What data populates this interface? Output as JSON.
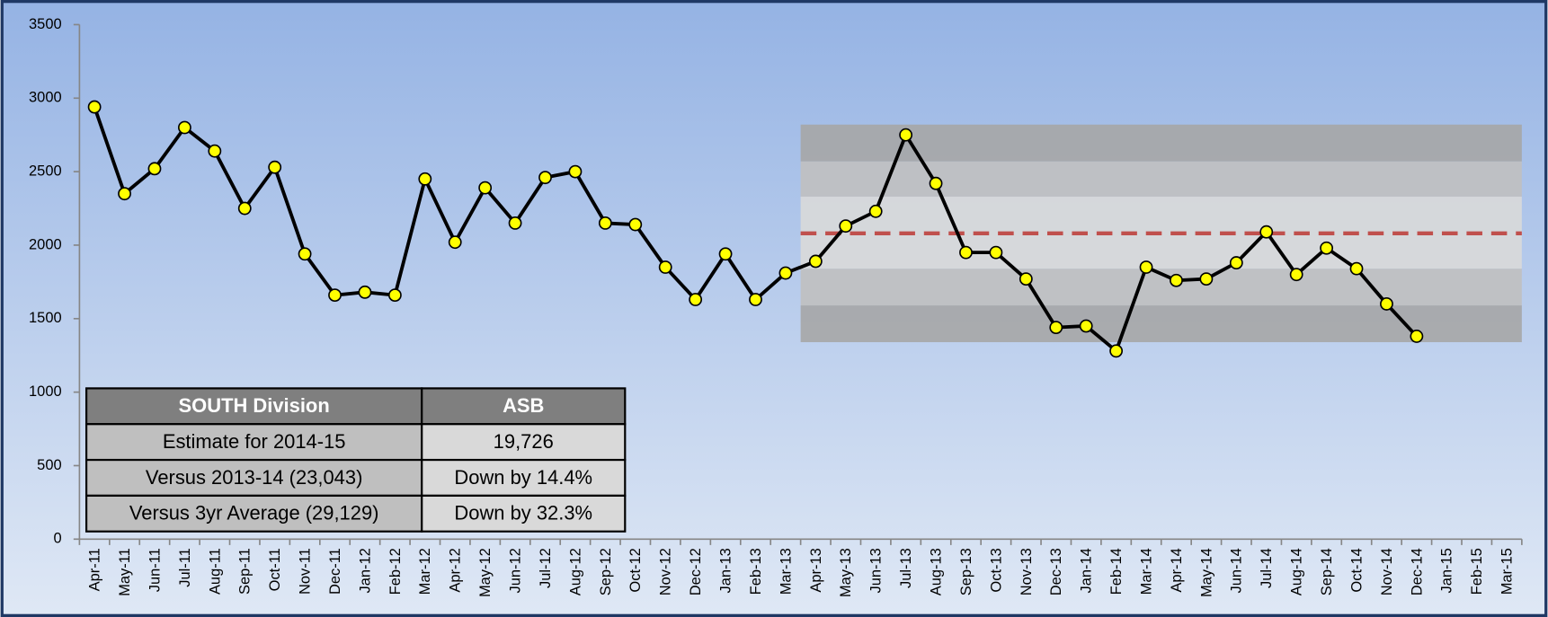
{
  "chart_data": {
    "type": "line",
    "categories": [
      "Apr-11",
      "May-11",
      "Jun-11",
      "Jul-11",
      "Aug-11",
      "Sep-11",
      "Oct-11",
      "Nov-11",
      "Dec-11",
      "Jan-12",
      "Feb-12",
      "Mar-12",
      "Apr-12",
      "May-12",
      "Jun-12",
      "Jul-12",
      "Aug-12",
      "Sep-12",
      "Oct-12",
      "Nov-12",
      "Dec-12",
      "Jan-13",
      "Feb-13",
      "Mar-13",
      "Apr-13",
      "May-13",
      "Jun-13",
      "Jul-13",
      "Aug-13",
      "Sep-13",
      "Oct-13",
      "Nov-13",
      "Dec-13",
      "Jan-14",
      "Feb-14",
      "Mar-14",
      "Apr-14",
      "May-14",
      "Jun-14",
      "Jul-14",
      "Aug-14",
      "Sep-14",
      "Oct-14",
      "Nov-14",
      "Dec-14",
      "Jan-15",
      "Feb-15",
      "Mar-15"
    ],
    "series": [
      {
        "name": "ASB",
        "color": "#000000",
        "marker_color": "#ffff00",
        "values": [
          2940,
          2350,
          2520,
          2800,
          2640,
          2250,
          2530,
          1940,
          1660,
          1680,
          1660,
          2450,
          2020,
          2390,
          2150,
          2460,
          2500,
          2150,
          2140,
          1850,
          1630,
          1940,
          1630,
          1810,
          1890,
          2130,
          2230,
          2750,
          2420,
          1950,
          1950,
          1770,
          1440,
          1450,
          1280,
          1850,
          1760,
          1770,
          1880,
          2090,
          1800,
          1980,
          1840,
          1600,
          1380,
          null,
          null,
          null
        ]
      }
    ],
    "ylim": [
      0,
      3500
    ],
    "yticks": [
      0,
      500,
      1000,
      1500,
      2000,
      2500,
      3000,
      3500
    ],
    "bands_from": "Apr-13",
    "bands": [
      {
        "from": 1340,
        "to": 1590,
        "color": "#a6a6a6"
      },
      {
        "from": 1590,
        "to": 1840,
        "color": "#c0c0c0"
      },
      {
        "from": 1840,
        "to": 2330,
        "color": "#d9d9d9"
      },
      {
        "from": 2330,
        "to": 2570,
        "color": "#c0c0c0"
      },
      {
        "from": 2570,
        "to": 2820,
        "color": "#a6a6a6"
      }
    ],
    "reference_line": {
      "value": 2080,
      "color": "#c0504d"
    }
  },
  "table": {
    "header": [
      "SOUTH Division",
      "ASB"
    ],
    "rows": [
      [
        "Estimate for 2014-15",
        "19,726"
      ],
      [
        "Versus 2013-14 (23,043)",
        "Down by 14.4%"
      ],
      [
        "Versus 3yr Average (29,129)",
        "Down by 32.3%"
      ]
    ]
  }
}
